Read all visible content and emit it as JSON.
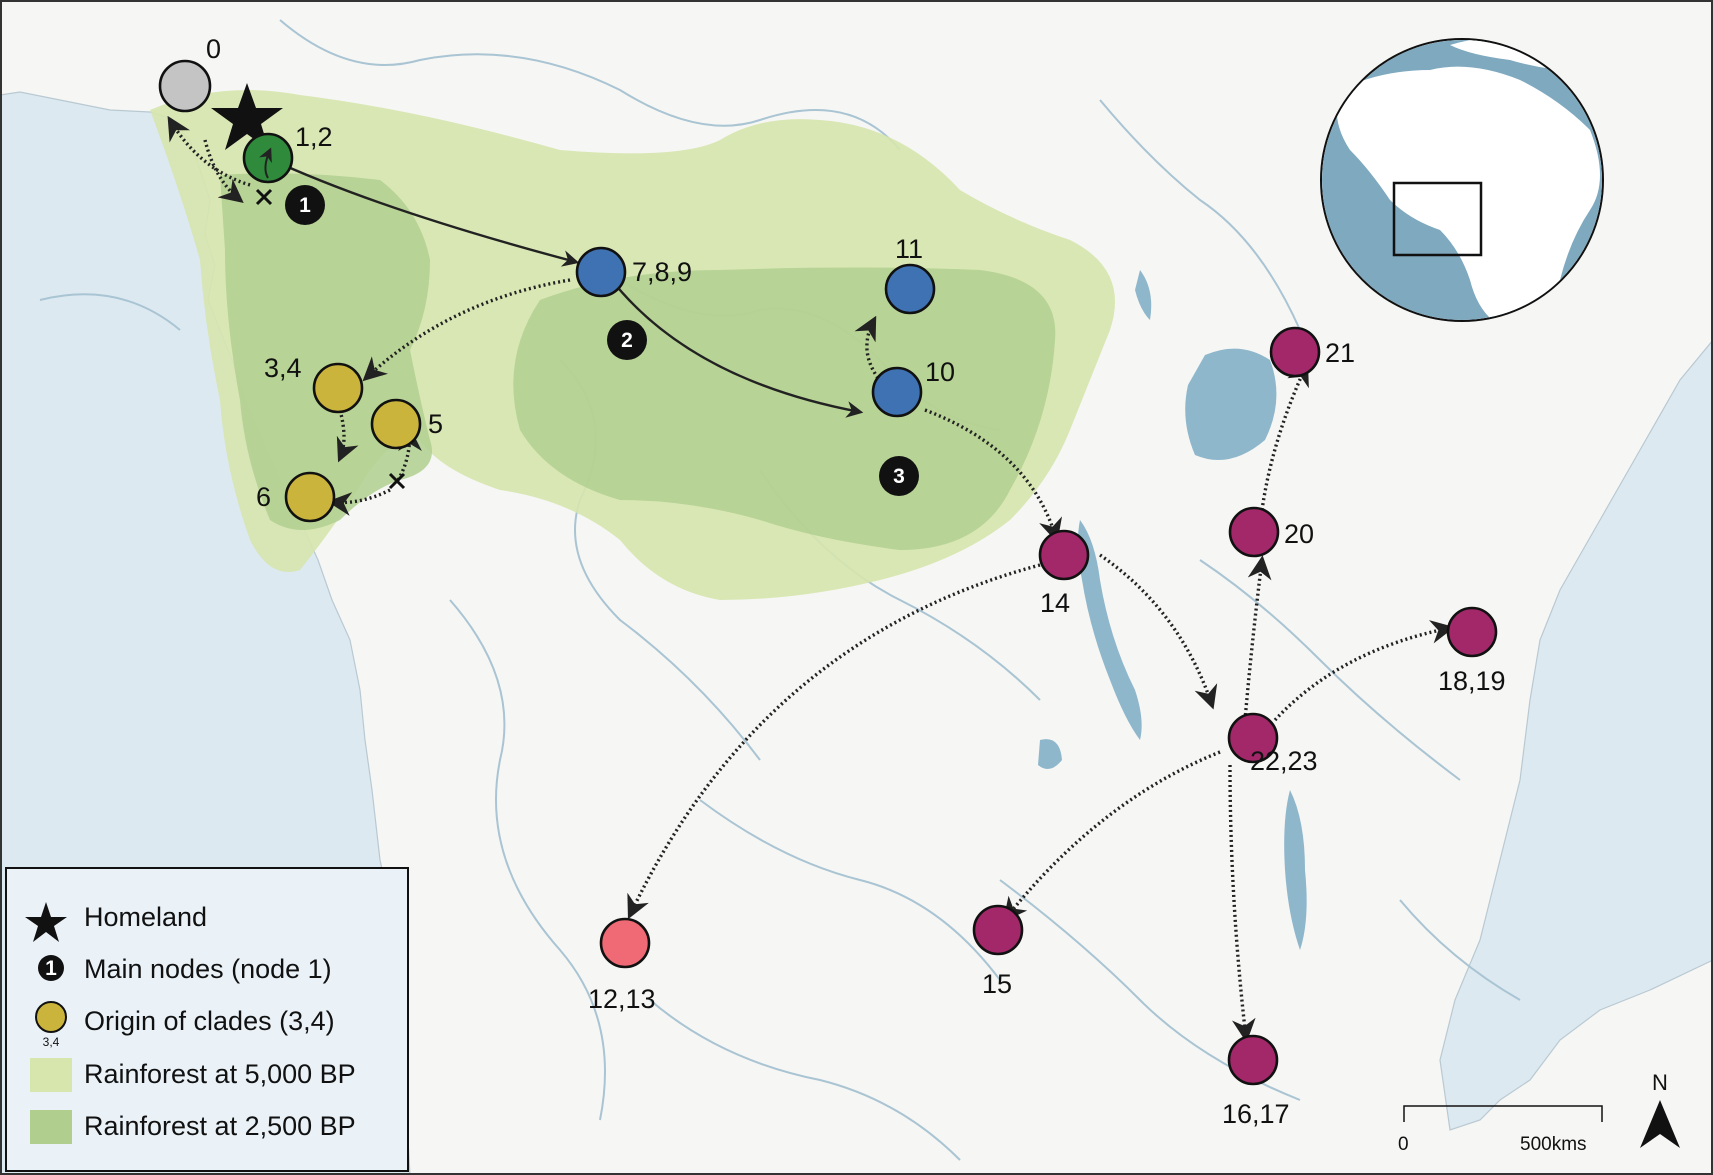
{
  "legend": {
    "homeland": "Homeland",
    "main_nodes": "Main nodes (node 1)",
    "main_nodes_badge": "1",
    "origin_clades": "Origin of clades (3,4)",
    "origin_clades_sub": "3,4",
    "rainforest_5000": "Rainforest at 5,000 BP",
    "rainforest_2500": "Rainforest at 2,500 BP"
  },
  "colors": {
    "ocean": "#dce9f1",
    "land": "#f6f6f4",
    "lake": "#8fb7cc",
    "river": "#a9c4d3",
    "rainforest_5000": "#d6e6ad",
    "rainforest_2500": "#b0cf8f",
    "node_grey": "#c4c4c4",
    "node_green": "#2f8a3c",
    "node_blue": "#3f72b3",
    "node_yellow": "#cbb43c",
    "node_pink": "#ef6a74",
    "node_magenta": "#a2286a",
    "main_node": "#111111"
  },
  "sites": [
    {
      "id": "site-0",
      "label": "0",
      "color": "node_grey"
    },
    {
      "id": "site-1-2",
      "label": "1,2",
      "color": "node_green"
    },
    {
      "id": "site-7-8-9",
      "label": "7,8,9",
      "color": "node_blue"
    },
    {
      "id": "site-11",
      "label": "11",
      "color": "node_blue"
    },
    {
      "id": "site-10",
      "label": "10",
      "color": "node_blue"
    },
    {
      "id": "site-3-4",
      "label": "3,4",
      "color": "node_yellow"
    },
    {
      "id": "site-5",
      "label": "5",
      "color": "node_yellow"
    },
    {
      "id": "site-6",
      "label": "6",
      "color": "node_yellow"
    },
    {
      "id": "site-14",
      "label": "14",
      "color": "node_magenta"
    },
    {
      "id": "site-21",
      "label": "21",
      "color": "node_magenta"
    },
    {
      "id": "site-20",
      "label": "20",
      "color": "node_magenta"
    },
    {
      "id": "site-18-19",
      "label": "18,19",
      "color": "node_magenta"
    },
    {
      "id": "site-22-23",
      "label": "22,23",
      "color": "node_magenta"
    },
    {
      "id": "site-15",
      "label": "15",
      "color": "node_magenta"
    },
    {
      "id": "site-16-17",
      "label": "16,17",
      "color": "node_magenta"
    },
    {
      "id": "site-12-13",
      "label": "12,13",
      "color": "node_pink"
    }
  ],
  "main_nodes": [
    {
      "id": "main-node-1",
      "label": "1"
    },
    {
      "id": "main-node-2",
      "label": "2"
    },
    {
      "id": "main-node-3",
      "label": "3"
    }
  ],
  "scale_bar": {
    "start": "0",
    "end": "500kms"
  },
  "north_arrow": {
    "label": "N"
  },
  "inset": {
    "description_icon": "globe-inset-icon"
  }
}
